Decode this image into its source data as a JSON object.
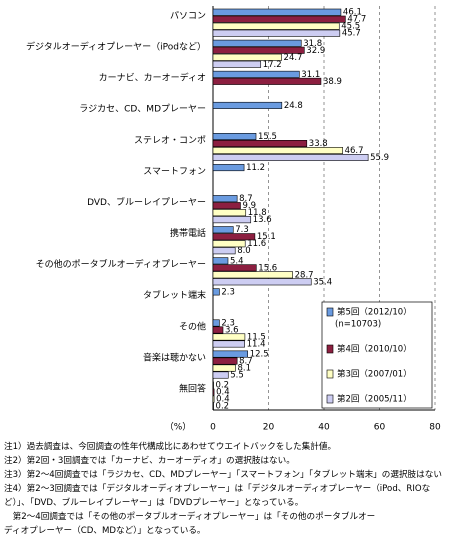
{
  "chart_data": {
    "type": "bar",
    "orientation": "horizontal",
    "categories": [
      "パソコン",
      "デジタルオーディオプレーヤー（iPodなど）",
      "カーナビ、カーオーディオ",
      "ラジカセ、CD、MDプレーヤー",
      "ステレオ・コンポ",
      "スマートフォン",
      "DVD、ブルーレイプレーヤー",
      "携帯電話",
      "その他のポータブルオーディオプレーヤー",
      "タブレット端末",
      "その他",
      "音楽は聴かない",
      "無回答"
    ],
    "series": [
      {
        "name": "第5回（2012/10）",
        "note": "(n=10703)",
        "color": "#6a9be0",
        "values": [
          46.1,
          31.8,
          31.1,
          24.8,
          15.5,
          11.2,
          8.7,
          7.3,
          5.4,
          2.3,
          2.3,
          12.5,
          0.2
        ],
        "value_labels": [
          "46.1",
          "31.8",
          "31.1",
          "24.8",
          "15.5",
          "11.2",
          "8.7",
          "7.3",
          "5.4",
          "2.3",
          "2.3",
          "12.5",
          "0.2"
        ]
      },
      {
        "name": "第4回（2010/10）",
        "color": "#8c1f40",
        "values": [
          47.7,
          32.9,
          38.9,
          null,
          33.8,
          null,
          9.9,
          15.1,
          15.6,
          null,
          3.6,
          8.7,
          0.4
        ],
        "value_labels": [
          "47.7",
          "32.9",
          "38.9",
          null,
          "33.8",
          null,
          "9.9",
          "15.1",
          "15.6",
          null,
          "3.6",
          "8.7",
          "0.4"
        ]
      },
      {
        "name": "第3回（2007/01）",
        "color": "#ffffc4",
        "values": [
          45.5,
          24.7,
          null,
          null,
          46.7,
          null,
          11.8,
          11.6,
          28.7,
          null,
          11.5,
          8.1,
          0.4
        ],
        "value_labels": [
          "45.5",
          "24.7",
          null,
          null,
          "46.7",
          null,
          "11.8",
          "11.6",
          "28.7",
          null,
          "11.5",
          "8.1",
          "0.4"
        ]
      },
      {
        "name": "第2回（2005/11）",
        "color": "#cdcdf2",
        "values": [
          45.7,
          17.2,
          null,
          null,
          55.9,
          null,
          13.6,
          8.0,
          35.4,
          null,
          11.4,
          5.5,
          0.2
        ],
        "value_labels": [
          "45.7",
          "17.2",
          null,
          null,
          "55.9",
          null,
          "13.6",
          "8.0",
          "35.4",
          null,
          "11.4",
          "5.5",
          "0.2"
        ]
      }
    ],
    "xlabel": "（%）",
    "xlim": [
      0,
      80
    ],
    "xticks": [
      0,
      20,
      40,
      60,
      80
    ],
    "grid": true,
    "notes": [
      "注1）過去調査は、今回調査の性年代構成比にあわせてウエイトバックをした集計値。",
      "注2）第2回・3回調査では「カーナビ、カーオーディオ」の選択肢はない。",
      "注3）第2～4回調査では「ラジカセ、CD、MDプレーヤー」「スマートフォン」「タブレット端末」の選択肢はない",
      "注4）第2～3回調査では「デジタルオーディオプレーヤー」は「デジタルオーディオプレーヤー（iPod、RIOな",
      "ど）」、「DVD、ブルーレイプレーヤー」は「DVDプレーヤー」となっている。",
      "　第2～4回調査では「その他のポータブルオーディオプレーヤー」は「その他のポータブルオー",
      "ディオプレーヤー（CD、MDなど）」となっている。"
    ]
  }
}
